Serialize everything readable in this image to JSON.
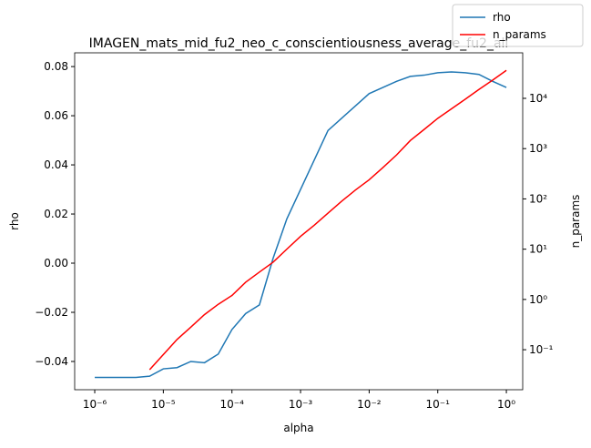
{
  "chart_data": {
    "type": "line",
    "title": "IMAGEN_mats_mid_fu2_neo_c_conscientiousness_average_fu2_all",
    "x_label": "alpha",
    "y_label": "rho",
    "y2_label": "n_params",
    "x": [
      1e-06,
      1.585e-06,
      2.512e-06,
      3.981e-06,
      6.31e-06,
      1e-05,
      1.585e-05,
      2.512e-05,
      3.981e-05,
      6.31e-05,
      0.0001,
      0.0001585,
      0.0002512,
      0.0003981,
      0.000631,
      0.001,
      0.001585,
      0.002512,
      0.003981,
      0.00631,
      0.01,
      0.01585,
      0.02512,
      0.03981,
      0.0631,
      0.1,
      0.1585,
      0.2512,
      0.3981,
      0.631,
      1
    ],
    "xscale": "log",
    "xlim": [
      5.1e-07,
      1.73
    ],
    "xticks": [
      {
        "value": 1e-06,
        "label": "10⁻⁶"
      },
      {
        "value": 1e-05,
        "label": "10⁻⁵"
      },
      {
        "value": 0.0001,
        "label": "10⁻⁴"
      },
      {
        "value": 0.001,
        "label": "10⁻³"
      },
      {
        "value": 0.01,
        "label": "10⁻²"
      },
      {
        "value": 0.1,
        "label": "10⁻¹"
      },
      {
        "value": 1,
        "label": "10⁰"
      }
    ],
    "ylim": [
      -0.0515,
      0.0856
    ],
    "yticks": [
      {
        "value": -0.04,
        "label": "−0.04"
      },
      {
        "value": -0.02,
        "label": "−0.02"
      },
      {
        "value": 0,
        "label": "0.00"
      },
      {
        "value": 0.02,
        "label": "0.02"
      },
      {
        "value": 0.04,
        "label": "0.04"
      },
      {
        "value": 0.06,
        "label": "0.06"
      },
      {
        "value": 0.08,
        "label": "0.08"
      }
    ],
    "y2scale": "log",
    "y2lim": [
      0.016,
      80500
    ],
    "y2ticks": [
      {
        "value": 0.1,
        "label": "10⁻¹"
      },
      {
        "value": 1,
        "label": "10⁰"
      },
      {
        "value": 10,
        "label": "10¹"
      },
      {
        "value": 100,
        "label": "10²"
      },
      {
        "value": 1000,
        "label": "10³"
      },
      {
        "value": 10000,
        "label": "10⁴"
      }
    ],
    "legend": "upper right",
    "series": [
      {
        "name": "rho",
        "color": "#1f77b4",
        "values": [
          -0.0465,
          -0.0465,
          -0.0465,
          -0.0465,
          -0.046,
          -0.043,
          -0.0425,
          -0.04,
          -0.0405,
          -0.037,
          -0.027,
          -0.0205,
          -0.017,
          0.002,
          0.018,
          0.03,
          0.042,
          0.054,
          0.059,
          0.064,
          0.069,
          0.0715,
          0.074,
          0.076,
          0.0765,
          0.0775,
          0.0778,
          0.0775,
          0.0768,
          0.074,
          0.0715
        ]
      },
      {
        "name": "n_params",
        "color": "#ff0000",
        "axis": "y2",
        "values": [
          null,
          null,
          null,
          null,
          0.04,
          0.08,
          0.16,
          0.28,
          0.5,
          0.8,
          1.2,
          2.2,
          3.5,
          5.5,
          10,
          18,
          30,
          52,
          90,
          150,
          240,
          420,
          750,
          1450,
          2400,
          4000,
          6200,
          9600,
          15000,
          23000,
          36000
        ]
      }
    ]
  }
}
